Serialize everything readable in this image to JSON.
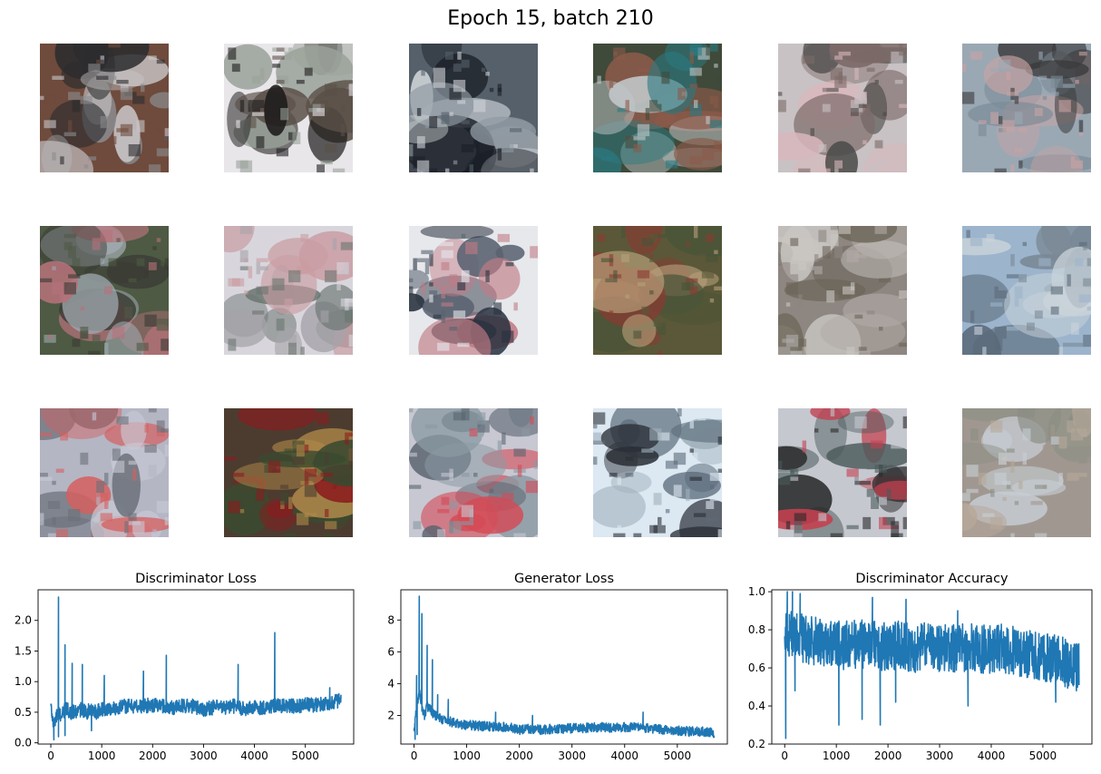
{
  "figure": {
    "title": "Epoch 15, batch 210"
  },
  "samples": [
    {
      "colors": [
        "#6e4b3c",
        "#c9c6c8",
        "#2c2c2e",
        "#8c8c90"
      ]
    },
    {
      "colors": [
        "#e9e6ea",
        "#5a5048",
        "#1e1c1c",
        "#9aa29a"
      ]
    },
    {
      "colors": [
        "#55606a",
        "#d0d4d8",
        "#1a1e26",
        "#8f9aa2"
      ]
    },
    {
      "colors": [
        "#3f4a3a",
        "#8a5a4a",
        "#c2c8ca",
        "#2a7a82"
      ]
    },
    {
      "colors": [
        "#c8c2c4",
        "#7c6a68",
        "#d9b8bc",
        "#4a4a48"
      ]
    },
    {
      "colors": [
        "#9aa8b4",
        "#c9a4a4",
        "#3a3a3c",
        "#7a8a96"
      ]
    },
    {
      "colors": [
        "#4e5a44",
        "#b5727a",
        "#a0aab0",
        "#3a3a34"
      ]
    },
    {
      "colors": [
        "#d8d6dc",
        "#6a7470",
        "#c99ca2",
        "#a6a4aa"
      ]
    },
    {
      "colors": [
        "#e6e8ec",
        "#2a3240",
        "#c27c86",
        "#5a6270"
      ]
    },
    {
      "colors": [
        "#5a5838",
        "#8a3a32",
        "#b8a07a",
        "#4a5438"
      ]
    },
    {
      "colors": [
        "#8e8680",
        "#c9c6c2",
        "#6a6458",
        "#b0aaa6"
      ]
    },
    {
      "colors": [
        "#9cb4cc",
        "#5a6a7a",
        "#cad4da",
        "#7a8894"
      ]
    },
    {
      "colors": [
        "#b4b6c4",
        "#6a7078",
        "#d46060",
        "#c8cad6"
      ]
    },
    {
      "colors": [
        "#4c3c30",
        "#8a1c1e",
        "#3a4a30",
        "#b08a4a"
      ]
    },
    {
      "colors": [
        "#c8c8d2",
        "#5a6470",
        "#d44a56",
        "#8a9aa2"
      ]
    },
    {
      "colors": [
        "#dce8f2",
        "#5a6a78",
        "#2a2e36",
        "#a0b0bc"
      ]
    },
    {
      "colors": [
        "#c6c8d0",
        "#4a5a5a",
        "#c44050",
        "#2a2a2a"
      ]
    },
    {
      "colors": [
        "#a09890",
        "#c8ced6",
        "#8a8e84",
        "#b6a89a"
      ]
    }
  ],
  "chart_data": [
    {
      "type": "line",
      "title": "Discriminator Loss",
      "xlabel": "",
      "ylabel": "",
      "xlim": [
        -250,
        5950
      ],
      "ylim": [
        -0.02,
        2.5
      ],
      "xticks": [
        0,
        1000,
        2000,
        3000,
        4000,
        5000
      ],
      "yticks": [
        0.0,
        0.5,
        1.0,
        1.5,
        2.0
      ],
      "ytick_labels": [
        "0.0",
        "0.5",
        "1.0",
        "1.5",
        "2.0"
      ],
      "color": "#1f77b4",
      "grid": false,
      "x": [
        0,
        50,
        100,
        150,
        200,
        250,
        300,
        400,
        500,
        600,
        700,
        800,
        900,
        1000,
        1200,
        1400,
        1600,
        1800,
        2000,
        2200,
        2400,
        2600,
        2800,
        3000,
        3200,
        3400,
        3600,
        3800,
        4000,
        4200,
        4400,
        4600,
        4800,
        5000,
        5200,
        5400,
        5600,
        5700
      ],
      "y": [
        0.6,
        0.3,
        0.4,
        0.5,
        0.45,
        0.5,
        0.55,
        0.5,
        0.5,
        0.55,
        0.5,
        0.55,
        0.5,
        0.55,
        0.55,
        0.6,
        0.6,
        0.6,
        0.62,
        0.6,
        0.58,
        0.6,
        0.6,
        0.55,
        0.58,
        0.58,
        0.6,
        0.55,
        0.58,
        0.58,
        0.6,
        0.6,
        0.6,
        0.62,
        0.62,
        0.65,
        0.68,
        0.7
      ],
      "noise": 0.12,
      "spikes": [
        [
          150,
          2.38
        ],
        [
          280,
          1.6
        ],
        [
          420,
          1.3
        ],
        [
          620,
          1.28
        ],
        [
          1050,
          1.1
        ],
        [
          1820,
          1.17
        ],
        [
          2270,
          1.43
        ],
        [
          3680,
          1.28
        ],
        [
          4400,
          1.8
        ],
        [
          5480,
          0.9
        ]
      ],
      "dips": [
        [
          60,
          0.05
        ],
        [
          150,
          0.1
        ],
        [
          280,
          0.12
        ],
        [
          800,
          0.2
        ]
      ]
    },
    {
      "type": "line",
      "title": "Generator Loss",
      "xlabel": "",
      "ylabel": "",
      "xlim": [
        -250,
        5950
      ],
      "ylim": [
        0.2,
        9.9
      ],
      "xticks": [
        0,
        1000,
        2000,
        3000,
        4000,
        5000
      ],
      "yticks": [
        2,
        4,
        6,
        8
      ],
      "ytick_labels": [
        "2",
        "4",
        "6",
        "8"
      ],
      "color": "#1f77b4",
      "grid": false,
      "x": [
        0,
        50,
        100,
        150,
        200,
        250,
        300,
        400,
        500,
        600,
        700,
        800,
        900,
        1000,
        1200,
        1400,
        1600,
        1800,
        2000,
        2200,
        2400,
        2600,
        2800,
        3000,
        3200,
        3400,
        3600,
        3800,
        4000,
        4200,
        4400,
        4600,
        4800,
        5000,
        5200,
        5400,
        5600,
        5700
      ],
      "y": [
        1.0,
        2.5,
        3.5,
        2.5,
        2.0,
        2.6,
        2.4,
        2.0,
        1.8,
        1.7,
        1.6,
        1.5,
        1.45,
        1.4,
        1.35,
        1.3,
        1.3,
        1.25,
        1.1,
        1.15,
        1.1,
        1.15,
        1.15,
        1.2,
        1.2,
        1.25,
        1.25,
        1.2,
        1.25,
        1.3,
        1.2,
        1.15,
        1.1,
        1.05,
        1.0,
        1.0,
        0.95,
        0.9
      ],
      "noise": 0.3,
      "spikes": [
        [
          50,
          4.5
        ],
        [
          100,
          9.5
        ],
        [
          150,
          8.4
        ],
        [
          250,
          6.4
        ],
        [
          350,
          5.5
        ],
        [
          450,
          3.3
        ],
        [
          650,
          3.0
        ],
        [
          1550,
          2.2
        ],
        [
          2250,
          2.0
        ],
        [
          4350,
          2.2
        ]
      ],
      "dips": [
        [
          20,
          0.5
        ],
        [
          60,
          0.8
        ]
      ]
    },
    {
      "type": "line",
      "title": "Discriminator Accuracy",
      "xlabel": "",
      "ylabel": "",
      "xlim": [
        -250,
        5950
      ],
      "ylim": [
        0.2,
        1.01
      ],
      "xticks": [
        0,
        1000,
        2000,
        3000,
        4000,
        5000
      ],
      "yticks": [
        0.2,
        0.4,
        0.6,
        0.8,
        1.0
      ],
      "ytick_labels": [
        "0.2",
        "0.4",
        "0.6",
        "0.8",
        "1.0"
      ],
      "color": "#1f77b4",
      "grid": false,
      "x": [
        0,
        100,
        200,
        300,
        400,
        500,
        600,
        800,
        1000,
        1200,
        1400,
        1600,
        1800,
        2000,
        2200,
        2400,
        2600,
        2800,
        3000,
        3200,
        3400,
        3600,
        3800,
        4000,
        4200,
        4400,
        4600,
        4800,
        5000,
        5200,
        5400,
        5600,
        5700
      ],
      "y": [
        0.75,
        0.78,
        0.78,
        0.76,
        0.75,
        0.74,
        0.74,
        0.73,
        0.72,
        0.72,
        0.72,
        0.73,
        0.72,
        0.71,
        0.72,
        0.71,
        0.7,
        0.72,
        0.71,
        0.7,
        0.7,
        0.71,
        0.7,
        0.7,
        0.7,
        0.69,
        0.68,
        0.67,
        0.66,
        0.65,
        0.63,
        0.6,
        0.6
      ],
      "noise": 0.13,
      "spikes": [
        [
          50,
          1.0
        ],
        [
          150,
          1.0
        ],
        [
          300,
          0.99
        ],
        [
          1700,
          0.97
        ],
        [
          2350,
          0.96
        ],
        [
          3350,
          0.9
        ]
      ],
      "dips": [
        [
          20,
          0.23
        ],
        [
          200,
          0.48
        ],
        [
          1050,
          0.3
        ],
        [
          1500,
          0.33
        ],
        [
          1850,
          0.3
        ],
        [
          2150,
          0.42
        ],
        [
          3550,
          0.4
        ],
        [
          5250,
          0.42
        ],
        [
          5650,
          0.48
        ]
      ]
    }
  ]
}
